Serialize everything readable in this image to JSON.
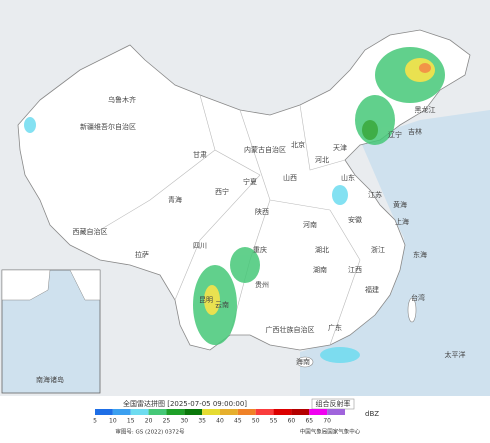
{
  "legend": {
    "title": "全国雷达拼图 [2025-07-05 09:00:00]",
    "product": "组合反射率",
    "unit": "dBZ",
    "items": [
      {
        "value": 5,
        "color": "#1e6ee6"
      },
      {
        "value": 10,
        "color": "#3ca0f0"
      },
      {
        "value": 15,
        "color": "#6edcf0"
      },
      {
        "value": 20,
        "color": "#46c878"
      },
      {
        "value": 25,
        "color": "#1ea028"
      },
      {
        "value": 30,
        "color": "#0a780a"
      },
      {
        "value": 35,
        "color": "#e6dc32"
      },
      {
        "value": 40,
        "color": "#e6af2d"
      },
      {
        "value": 45,
        "color": "#f08228"
      },
      {
        "value": 50,
        "color": "#fa3c3c"
      },
      {
        "value": 55,
        "color": "#dc0000"
      },
      {
        "value": 60,
        "color": "#b40000"
      },
      {
        "value": 65,
        "color": "#f000f0"
      },
      {
        "value": 70,
        "color": "#a064dc"
      }
    ],
    "approval": "审图号: GS (2022) 0372号",
    "publisher": "中国气象局国家气象中心"
  },
  "labels": [
    "新疆维吾尔自治区",
    "乌鲁木齐",
    "西藏自治区",
    "拉萨",
    "青海",
    "西宁",
    "内蒙古自治区",
    "北京",
    "天津",
    "黑龙江",
    "吉林",
    "辽宁",
    "河北",
    "山西",
    "陕西",
    "宁夏",
    "甘肃",
    "四川",
    "重庆",
    "云南",
    "昆明",
    "贵州",
    "广西壮族自治区",
    "湖南",
    "湖北",
    "河南",
    "山东",
    "江苏",
    "上海",
    "浙江",
    "安徽",
    "江西",
    "福建",
    "台湾",
    "广东",
    "海南",
    "黄海",
    "东海",
    "太平洋",
    "南海诸岛"
  ]
}
